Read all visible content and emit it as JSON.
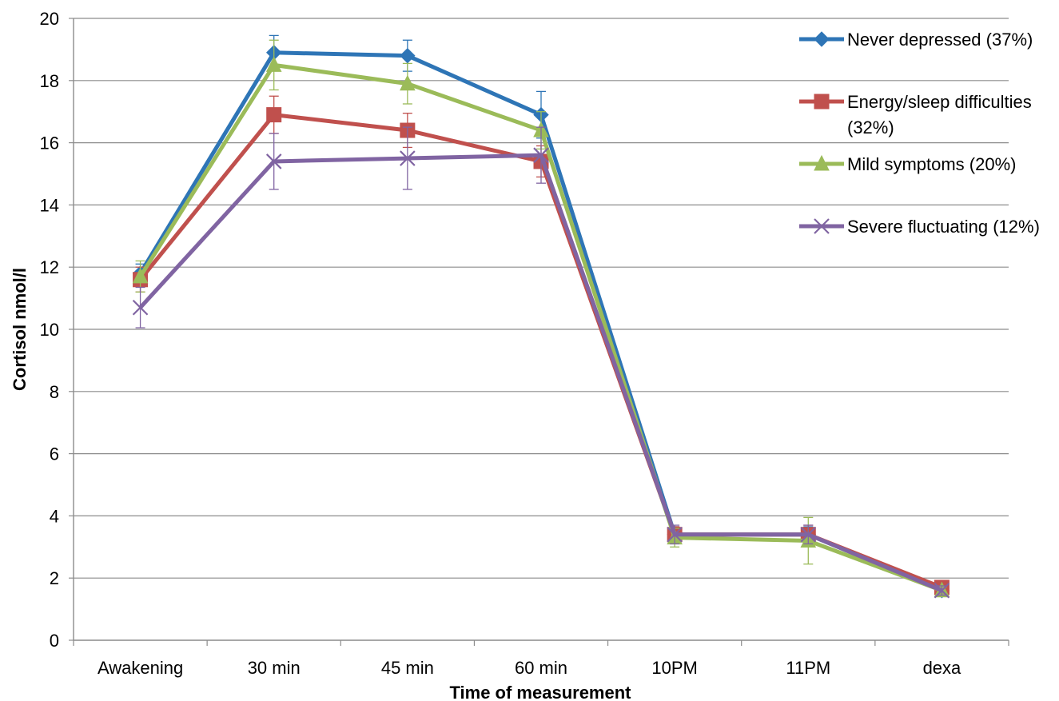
{
  "chart_data": {
    "type": "line",
    "title": "",
    "xlabel": "Time of measurement",
    "ylabel": "Cortisol nmol/l",
    "categories": [
      "Awakening",
      "30 min",
      "45 min",
      "60 min",
      "10PM",
      "11PM",
      "dexa"
    ],
    "ylim": [
      0,
      20
    ],
    "yticks": [
      "0",
      "2",
      "4",
      "6",
      "8",
      "10",
      "12",
      "14",
      "16",
      "18",
      "20"
    ],
    "grid": true,
    "legend_position": "top-right",
    "series": [
      {
        "name": "Never depressed (37%)",
        "legend_lines": [
          "Never depressed (37%)"
        ],
        "color": "#2E75B6",
        "marker": "diamond",
        "values": [
          11.8,
          18.9,
          18.8,
          16.9,
          3.4,
          3.4,
          1.6
        ],
        "error": [
          0.3,
          0.55,
          0.5,
          0.75,
          0.25,
          0.25,
          0.1
        ]
      },
      {
        "name": "Energy/sleep difficulties (32%)",
        "legend_lines": [
          "Energy/sleep difficulties",
          "(32%)"
        ],
        "color": "#C0504D",
        "marker": "square",
        "values": [
          11.6,
          16.9,
          16.4,
          15.4,
          3.4,
          3.4,
          1.7
        ],
        "error": [
          0.4,
          0.6,
          0.55,
          0.5,
          0.25,
          0.3,
          0.1
        ]
      },
      {
        "name": "Mild symptoms (20%)",
        "legend_lines": [
          "Mild symptoms (20%)"
        ],
        "color": "#9BBB59",
        "marker": "triangle",
        "values": [
          11.7,
          18.5,
          17.9,
          16.4,
          3.3,
          3.2,
          1.6
        ],
        "error": [
          0.5,
          0.8,
          0.65,
          0.6,
          0.3,
          0.75,
          0.1
        ]
      },
      {
        "name": "Severe fluctuating (12%)",
        "legend_lines": [
          "Severe fluctuating (12%)"
        ],
        "color": "#8064A2",
        "marker": "x",
        "values": [
          10.7,
          15.4,
          15.5,
          15.6,
          3.4,
          3.4,
          1.6
        ],
        "error": [
          0.65,
          0.9,
          1.0,
          0.9,
          0.3,
          0.3,
          0.15
        ]
      }
    ]
  }
}
